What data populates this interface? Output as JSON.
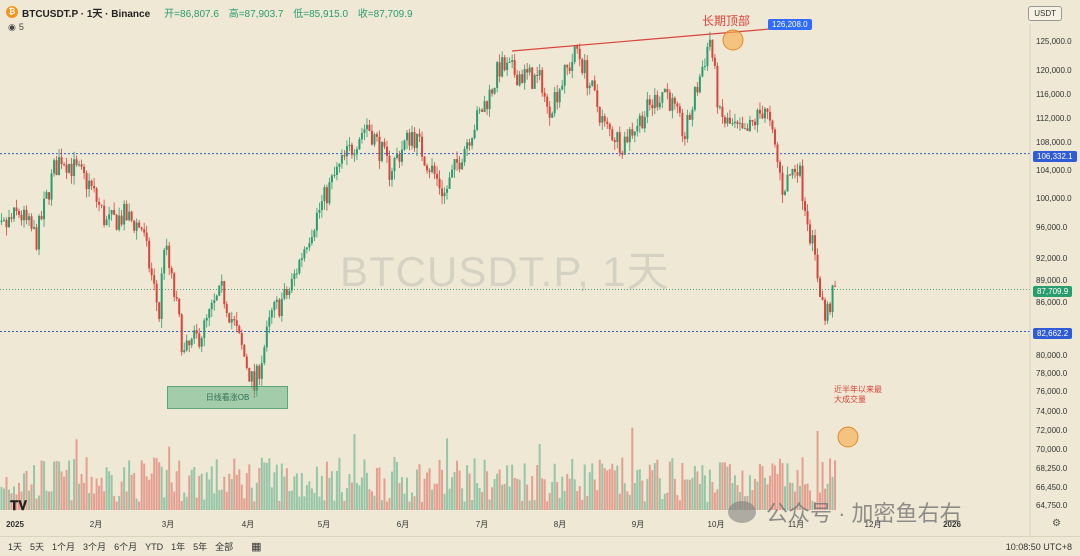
{
  "header": {
    "symbol": "BTCUSDT.P · 1天 · Binance",
    "open": "开=86,807.6",
    "high": "高=87,903.7",
    "low": "低=85,915.0",
    "close": "收=87,709.9",
    "volume_label": "5",
    "currency_button": "USDT"
  },
  "watermark": "BTCUSDT.P, 1天",
  "brand_watermark": "公众号 · 加密鱼右右",
  "annotations": {
    "top_label": "长期顶部",
    "peak_tag": "126,208.0",
    "ob_label": "日线看涨OB",
    "volume_note_1": "近半年以来最",
    "volume_note_2": "大成交量"
  },
  "price_tags": {
    "upper_level": "106,332.1",
    "current": "87,709.9",
    "lower_level": "82,662.2"
  },
  "bottom": {
    "ranges": [
      "1天",
      "5天",
      "1个月",
      "3个月",
      "6个月",
      "YTD",
      "1年",
      "5年",
      "全部"
    ],
    "time": "10:08:50 UTC+8"
  },
  "colors": {
    "up": "#2a9d6e",
    "down": "#d9443c",
    "level_line": "#2f5bd6",
    "accent_tag": "#2f6bff"
  },
  "chart_data": {
    "type": "candlestick",
    "title": "BTCUSDT.P · 1天 · Binance",
    "x_ticks": [
      "2025",
      "2月",
      "3月",
      "4月",
      "5月",
      "6月",
      "7月",
      "8月",
      "9月",
      "10月",
      "11月",
      "12月",
      "2026"
    ],
    "y_ticks": [
      125000,
      120000,
      116000,
      112000,
      108000,
      104000,
      100000,
      96000,
      92000,
      89000,
      86000,
      80000,
      78000,
      76000,
      74000,
      72000,
      70000,
      68250,
      66450,
      64750
    ],
    "y_tick_labels": [
      "125,000.0",
      "120,000.0",
      "116,000.0",
      "112,000.0",
      "108,000.0",
      "104,000.0",
      "100,000.0",
      "96,000.0",
      "92,000.0",
      "89,000.0",
      "86,000.0",
      "80,000.0",
      "78,000.0",
      "76,000.0",
      "74,000.0",
      "72,000.0",
      "70,000.0",
      "68,250.0",
      "66,450.0",
      "64,750.0"
    ],
    "close_path": [
      [
        "2024-12-20",
        94000
      ],
      [
        "2024-12-27",
        95500
      ],
      [
        "2025-01-03",
        98000
      ],
      [
        "2025-01-10",
        94500
      ],
      [
        "2025-01-17",
        104000
      ],
      [
        "2025-01-20",
        106000
      ],
      [
        "2025-01-24",
        104500
      ],
      [
        "2025-01-31",
        102000
      ],
      [
        "2025-02-07",
        96500
      ],
      [
        "2025-02-14",
        97500
      ],
      [
        "2025-02-21",
        96000
      ],
      [
        "2025-02-28",
        84500
      ],
      [
        "2025-03-02",
        94000
      ],
      [
        "2025-03-10",
        80000
      ],
      [
        "2025-03-18",
        83000
      ],
      [
        "2025-03-25",
        87500
      ],
      [
        "2025-03-31",
        82500
      ],
      [
        "2025-04-07",
        76300
      ],
      [
        "2025-04-14",
        84500
      ],
      [
        "2025-04-21",
        87500
      ],
      [
        "2025-04-28",
        94500
      ],
      [
        "2025-05-09",
        103000
      ],
      [
        "2025-05-22",
        111000
      ],
      [
        "2025-05-31",
        104000
      ],
      [
        "2025-06-09",
        109500
      ],
      [
        "2025-06-22",
        100500
      ],
      [
        "2025-06-30",
        107500
      ],
      [
        "2025-07-10",
        116000
      ],
      [
        "2025-07-14",
        120500
      ],
      [
        "2025-07-31",
        118000
      ],
      [
        "2025-08-02",
        113000
      ],
      [
        "2025-08-14",
        123500
      ],
      [
        "2025-08-25",
        110500
      ],
      [
        "2025-09-01",
        108000
      ],
      [
        "2025-09-18",
        117000
      ],
      [
        "2025-09-26",
        109000
      ],
      [
        "2025-10-06",
        125500
      ],
      [
        "2025-10-10",
        112000
      ],
      [
        "2025-10-20",
        109000
      ],
      [
        "2025-10-28",
        114000
      ],
      [
        "2025-11-04",
        101500
      ],
      [
        "2025-11-10",
        105000
      ],
      [
        "2025-11-21",
        84000
      ],
      [
        "2025-11-25",
        87709.9
      ]
    ],
    "levels": [
      106332.1,
      82662.2,
      87709.9
    ],
    "peak": 126208.0,
    "grid": false,
    "legend": "none"
  }
}
